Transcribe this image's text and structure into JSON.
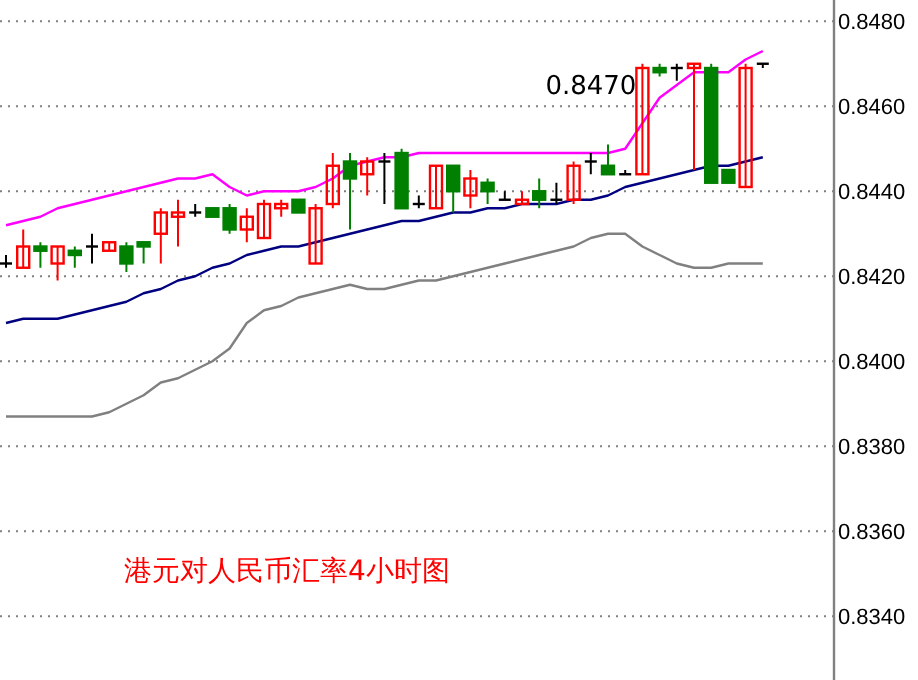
{
  "chart_data": {
    "type": "candlestick",
    "title": "港元对人民币汇率4小时图",
    "categories": [
      null,
      null,
      null,
      null,
      null,
      null,
      null,
      null,
      null,
      null,
      null,
      null,
      null,
      null,
      null,
      null,
      null,
      null,
      null,
      null,
      null,
      null,
      null,
      null,
      null,
      null,
      null,
      null,
      null,
      null,
      null,
      null,
      null,
      null,
      null,
      null,
      null,
      null,
      null,
      null,
      null,
      null,
      null,
      null,
      null
    ],
    "ohlc": [
      [
        0.8423,
        0.8425,
        0.8422,
        0.8423
      ],
      [
        0.8422,
        0.8431,
        0.8422,
        0.8427
      ],
      [
        0.8427,
        0.8428,
        0.8422,
        0.8426
      ],
      [
        0.8423,
        0.8427,
        0.8419,
        0.8427
      ],
      [
        0.8426,
        0.8427,
        0.8422,
        0.8425
      ],
      [
        0.8427,
        0.843,
        0.8423,
        0.8427
      ],
      [
        0.8426,
        0.8428,
        0.8426,
        0.8428
      ],
      [
        0.8427,
        0.8428,
        0.8421,
        0.8423
      ],
      [
        0.8428,
        0.8428,
        0.8423,
        0.8427
      ],
      [
        0.843,
        0.8436,
        0.8423,
        0.8435
      ],
      [
        0.8434,
        0.8438,
        0.8427,
        0.8435
      ],
      [
        0.8435,
        0.8437,
        0.8434,
        0.8435
      ],
      [
        0.8436,
        0.8436,
        0.8434,
        0.8434
      ],
      [
        0.8436,
        0.8437,
        0.843,
        0.8431
      ],
      [
        0.8431,
        0.8436,
        0.8428,
        0.8434
      ],
      [
        0.8429,
        0.8438,
        0.8429,
        0.8437
      ],
      [
        0.8436,
        0.8438,
        0.8434,
        0.8437
      ],
      [
        0.8438,
        0.8438,
        0.8435,
        0.8435
      ],
      [
        0.8423,
        0.8437,
        0.8423,
        0.8436
      ],
      [
        0.8437,
        0.8449,
        0.8436,
        0.8446
      ],
      [
        0.8447,
        0.8449,
        0.8431,
        0.8443
      ],
      [
        0.8444,
        0.8448,
        0.8439,
        0.8447
      ],
      [
        0.8447,
        0.8449,
        0.8437,
        0.8447
      ],
      [
        0.8449,
        0.845,
        0.8436,
        0.8436
      ],
      [
        0.8437,
        0.8439,
        0.8436,
        0.8437
      ],
      [
        0.8436,
        0.8446,
        0.8436,
        0.8446
      ],
      [
        0.8446,
        0.8446,
        0.8435,
        0.844
      ],
      [
        0.8439,
        0.8445,
        0.8436,
        0.8443
      ],
      [
        0.8442,
        0.8443,
        0.8437,
        0.844
      ],
      [
        0.8438,
        0.844,
        0.8438,
        0.8438
      ],
      [
        0.8437,
        0.844,
        0.8437,
        0.8438
      ],
      [
        0.844,
        0.8443,
        0.8436,
        0.8438
      ],
      [
        0.8438,
        0.8442,
        0.8437,
        0.8438
      ],
      [
        0.8438,
        0.8447,
        0.8437,
        0.8446
      ],
      [
        0.8447,
        0.8449,
        0.8444,
        0.8447
      ],
      [
        0.8446,
        0.8451,
        0.8444,
        0.8444
      ],
      [
        0.8444,
        0.8445,
        0.8444,
        0.8444
      ],
      [
        0.8444,
        0.847,
        0.8444,
        0.8469
      ],
      [
        0.8469,
        0.847,
        0.8467,
        0.8468
      ],
      [
        0.8469,
        0.847,
        0.8466,
        0.8469
      ],
      [
        0.8469,
        0.847,
        0.8445,
        0.847
      ],
      [
        0.8469,
        0.847,
        0.8442,
        0.8442
      ],
      [
        0.8445,
        0.8445,
        0.8442,
        0.8442
      ],
      [
        0.8441,
        0.847,
        0.8441,
        0.8469
      ],
      [
        0.847,
        0.847,
        0.8469,
        0.847
      ]
    ],
    "series": [
      {
        "type": "line",
        "color": "#ff00ff",
        "values": [
          0.8432,
          0.8433,
          0.8434,
          0.8436,
          0.8437,
          0.8438,
          0.8439,
          0.844,
          0.8441,
          0.8442,
          0.8443,
          0.8443,
          0.8444,
          0.8441,
          0.8439,
          0.844,
          0.844,
          0.844,
          0.8441,
          0.8443,
          0.8446,
          0.8447,
          0.8448,
          0.8448,
          0.8449,
          0.8449,
          0.8449,
          0.8449,
          0.8449,
          0.8449,
          0.8449,
          0.8449,
          0.8449,
          0.8449,
          0.8449,
          0.8449,
          0.845,
          0.8456,
          0.8462,
          0.8465,
          0.8468,
          0.8468,
          0.8468,
          0.8471,
          0.8473
        ]
      },
      {
        "type": "line",
        "color": "#000080",
        "values": [
          0.8409,
          0.841,
          0.841,
          0.841,
          0.8411,
          0.8412,
          0.8413,
          0.8414,
          0.8416,
          0.8417,
          0.8419,
          0.842,
          0.8422,
          0.8423,
          0.8425,
          0.8426,
          0.8427,
          0.8427,
          0.8428,
          0.8429,
          0.843,
          0.8431,
          0.8432,
          0.8433,
          0.8433,
          0.8434,
          0.8435,
          0.8435,
          0.8436,
          0.8436,
          0.8437,
          0.8437,
          0.8437,
          0.8438,
          0.8438,
          0.8439,
          0.8441,
          0.8442,
          0.8443,
          0.8444,
          0.8445,
          0.8446,
          0.8446,
          0.8447,
          0.8448
        ]
      },
      {
        "type": "line",
        "color": "#808080",
        "values": [
          0.8387,
          0.8387,
          0.8387,
          0.8387,
          0.8387,
          0.8387,
          0.8388,
          0.839,
          0.8392,
          0.8395,
          0.8396,
          0.8398,
          0.84,
          0.8403,
          0.8409,
          0.8412,
          0.8413,
          0.8415,
          0.8416,
          0.8417,
          0.8418,
          0.8417,
          0.8417,
          0.8418,
          0.8419,
          0.8419,
          0.842,
          0.8421,
          0.8422,
          0.8423,
          0.8424,
          0.8425,
          0.8426,
          0.8427,
          0.8429,
          0.843,
          0.843,
          0.8427,
          0.8425,
          0.8423,
          0.8422,
          0.8422,
          0.8423,
          0.8423,
          0.8423
        ]
      }
    ],
    "annotations": [
      "0.8470"
    ],
    "ylim": [
      0.8325,
      0.8485
    ],
    "yticks": [
      {
        "value": 0.848,
        "label": "0.8480"
      },
      {
        "value": 0.846,
        "label": "0.8460"
      },
      {
        "value": 0.844,
        "label": "0.8440"
      },
      {
        "value": 0.842,
        "label": "0.8420"
      },
      {
        "value": 0.84,
        "label": "0.8400"
      },
      {
        "value": 0.838,
        "label": "0.8380"
      },
      {
        "value": 0.836,
        "label": "0.8360"
      },
      {
        "value": 0.834,
        "label": "0.8340"
      }
    ],
    "grid": "y"
  }
}
